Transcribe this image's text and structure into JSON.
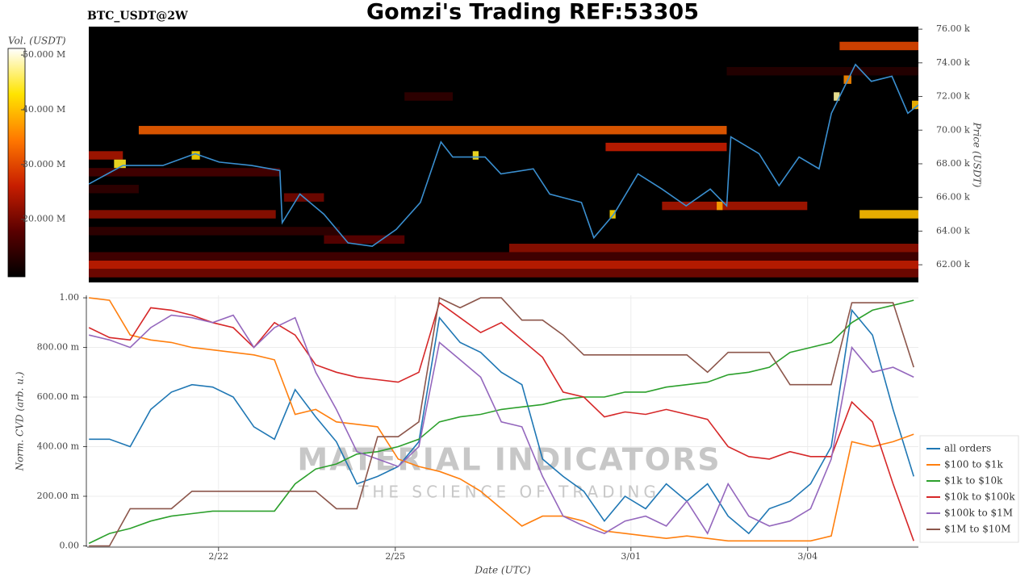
{
  "chart_data": [
    {
      "type": "heatmap",
      "title": "Gomzi's Trading REF:53305",
      "subtitle": "BTC_USDT@2W",
      "y_label": "Price (USDT)",
      "xlim": [
        19.77,
        33.88
      ],
      "ylim": [
        60950,
        76150
      ],
      "yticks": [
        {
          "value": 62000,
          "label": "62.00 k"
        },
        {
          "value": 64000,
          "label": "64.00 k"
        },
        {
          "value": 66000,
          "label": "66.00 k"
        },
        {
          "value": 68000,
          "label": "68.00 k"
        },
        {
          "value": 70000,
          "label": "70.00 k"
        },
        {
          "value": 72000,
          "label": "72.00 k"
        },
        {
          "value": 74000,
          "label": "74.00 k"
        },
        {
          "value": 76000,
          "label": "76.00 k"
        }
      ],
      "bin_size": 500,
      "colorbar": {
        "label": "Vol. (USDT)",
        "lim": [
          9500000,
          51200000
        ],
        "ticks": [
          {
            "value": 20000000,
            "label": "20.000 M"
          },
          {
            "value": 30000000,
            "label": "30.000 M"
          },
          {
            "value": 40000000,
            "label": "40.000 M"
          },
          {
            "value": 50000000,
            "label": "50.000 M"
          }
        ],
        "colormap": [
          "#000000",
          "#5a0000",
          "#c81e00",
          "#ff7800",
          "#ffe400",
          "#ffffff"
        ]
      },
      "cells": [
        {
          "price": 70000,
          "x0": 20.62,
          "x1": 30.62,
          "volume": 32000000
        },
        {
          "price": 75000,
          "x0": 32.54,
          "x1": 33.88,
          "volume": 30000000
        },
        {
          "price": 65000,
          "x0": 32.88,
          "x1": 33.88,
          "volume": 40000000
        },
        {
          "price": 65000,
          "x0": 19.77,
          "x1": 22.95,
          "volume": 22000000
        },
        {
          "price": 65500,
          "x0": 29.52,
          "x1": 31.99,
          "volume": 24000000
        },
        {
          "price": 62000,
          "x0": 19.77,
          "x1": 33.88,
          "volume": 26000000
        },
        {
          "price": 61500,
          "x0": 19.77,
          "x1": 33.88,
          "volume": 20000000
        },
        {
          "price": 62500,
          "x0": 19.77,
          "x1": 33.88,
          "volume": 16000000
        },
        {
          "price": 63000,
          "x0": 26.92,
          "x1": 33.88,
          "volume": 22000000
        },
        {
          "price": 64000,
          "x0": 19.77,
          "x1": 24.04,
          "volume": 14000000
        },
        {
          "price": 69000,
          "x0": 28.56,
          "x1": 30.62,
          "volume": 26000000
        },
        {
          "price": 68500,
          "x0": 19.77,
          "x1": 20.35,
          "volume": 24000000
        },
        {
          "price": 72000,
          "x0": 25.14,
          "x1": 25.96,
          "volume": 14000000
        },
        {
          "price": 73500,
          "x0": 30.62,
          "x1": 33.88,
          "volume": 13000000
        },
        {
          "price": 66500,
          "x0": 19.77,
          "x1": 20.62,
          "volume": 14000000
        },
        {
          "price": 67500,
          "x0": 19.77,
          "x1": 23.02,
          "volume": 16000000
        },
        {
          "price": 63500,
          "x0": 23.77,
          "x1": 25.14,
          "volume": 18000000
        },
        {
          "price": 66000,
          "x0": 23.09,
          "x1": 23.77,
          "volume": 20000000
        },
        {
          "price": 68000,
          "x0": 20.2,
          "x1": 20.4,
          "volume": 44000000
        },
        {
          "price": 68500,
          "x0": 21.52,
          "x1": 21.66,
          "volume": 42000000
        },
        {
          "price": 68500,
          "x0": 26.3,
          "x1": 26.4,
          "volume": 44000000
        },
        {
          "price": 72000,
          "x0": 32.44,
          "x1": 32.54,
          "volume": 48000000
        },
        {
          "price": 71500,
          "x0": 33.77,
          "x1": 33.88,
          "volume": 40000000
        },
        {
          "price": 65000,
          "x0": 28.63,
          "x1": 28.73,
          "volume": 42000000
        },
        {
          "price": 65500,
          "x0": 30.45,
          "x1": 30.55,
          "volume": 38000000
        },
        {
          "price": 73000,
          "x0": 32.61,
          "x1": 32.74,
          "volume": 36000000
        }
      ],
      "line": {
        "color": "#3a8fd0",
        "x": [
          19.77,
          20.35,
          21.03,
          21.58,
          21.99,
          22.54,
          23.02,
          23.06,
          23.36,
          23.77,
          24.18,
          24.59,
          25.0,
          25.41,
          25.76,
          25.96,
          26.51,
          26.78,
          27.33,
          27.61,
          28.15,
          28.36,
          28.7,
          29.11,
          29.52,
          29.93,
          30.34,
          30.62,
          30.69,
          31.17,
          31.51,
          31.85,
          32.19,
          32.4,
          32.81,
          33.08,
          33.43,
          33.7,
          33.88
        ],
        "values": [
          66800,
          67900,
          67900,
          68600,
          68100,
          67900,
          67600,
          64500,
          66200,
          65000,
          63300,
          63100,
          64100,
          65700,
          69300,
          68400,
          68400,
          67400,
          67700,
          66200,
          65700,
          63600,
          65000,
          67400,
          66500,
          65500,
          66500,
          65500,
          69600,
          68600,
          66700,
          68400,
          67700,
          71000,
          73900,
          72900,
          73200,
          71000,
          71500
        ]
      }
    },
    {
      "type": "line",
      "x_label": "Date (UTC)",
      "y_label": "Norm. CVD (arb. u.)",
      "xlim": [
        19.77,
        33.88
      ],
      "ylim": [
        -0.005,
        1.01
      ],
      "xticks": [
        {
          "value": 22,
          "label": "2/22"
        },
        {
          "value": 25,
          "label": "2/25"
        },
        {
          "value": 29,
          "label": "3/01"
        },
        {
          "value": 32,
          "label": "3/04"
        }
      ],
      "yticks": [
        {
          "value": 0,
          "label": "0.00"
        },
        {
          "value": 0.2,
          "label": "200.00 m"
        },
        {
          "value": 0.4,
          "label": "400.00 m"
        },
        {
          "value": 0.6,
          "label": "600.00 m"
        },
        {
          "value": 0.8,
          "label": "800.00 m"
        },
        {
          "value": 1,
          "label": "1.00"
        }
      ],
      "grid": true,
      "legend": "lower right",
      "watermark": {
        "title": "MATERIAL INDICATORS",
        "subtitle": "THE SCIENCE OF TRADING"
      },
      "x": [
        19.8,
        20.15,
        20.5,
        20.85,
        21.2,
        21.55,
        21.9,
        22.25,
        22.6,
        22.95,
        23.3,
        23.65,
        24.0,
        24.35,
        24.7,
        25.05,
        25.4,
        25.75,
        26.1,
        26.45,
        26.8,
        27.15,
        27.5,
        27.85,
        28.2,
        28.55,
        28.9,
        29.25,
        29.6,
        29.95,
        30.3,
        30.65,
        31.0,
        31.35,
        31.7,
        32.05,
        32.4,
        32.75,
        33.1,
        33.45,
        33.8
      ],
      "series": [
        {
          "name": "all orders",
          "color": "#1f77b4",
          "values": [
            0.43,
            0.43,
            0.4,
            0.55,
            0.62,
            0.65,
            0.64,
            0.6,
            0.48,
            0.43,
            0.63,
            0.52,
            0.42,
            0.25,
            0.28,
            0.32,
            0.42,
            0.92,
            0.82,
            0.78,
            0.7,
            0.65,
            0.35,
            0.28,
            0.22,
            0.1,
            0.2,
            0.15,
            0.25,
            0.18,
            0.25,
            0.12,
            0.05,
            0.15,
            0.18,
            0.25,
            0.4,
            0.95,
            0.85,
            0.55,
            0.28
          ]
        },
        {
          "name": "$100 to $1k",
          "color": "#ff7f0e",
          "values": [
            1.0,
            0.99,
            0.85,
            0.83,
            0.82,
            0.8,
            0.79,
            0.78,
            0.77,
            0.75,
            0.53,
            0.55,
            0.5,
            0.49,
            0.48,
            0.35,
            0.32,
            0.3,
            0.27,
            0.22,
            0.15,
            0.08,
            0.12,
            0.12,
            0.1,
            0.06,
            0.05,
            0.04,
            0.03,
            0.04,
            0.03,
            0.02,
            0.02,
            0.02,
            0.02,
            0.02,
            0.04,
            0.42,
            0.4,
            0.42,
            0.45
          ]
        },
        {
          "name": "$1k to $10k",
          "color": "#2ca02c",
          "values": [
            0.01,
            0.05,
            0.07,
            0.1,
            0.12,
            0.13,
            0.14,
            0.14,
            0.14,
            0.14,
            0.25,
            0.31,
            0.33,
            0.37,
            0.38,
            0.4,
            0.43,
            0.5,
            0.52,
            0.53,
            0.55,
            0.56,
            0.57,
            0.59,
            0.6,
            0.6,
            0.62,
            0.62,
            0.64,
            0.65,
            0.66,
            0.69,
            0.7,
            0.72,
            0.78,
            0.8,
            0.82,
            0.9,
            0.95,
            0.97,
            0.99
          ]
        },
        {
          "name": "$10k to $100k",
          "color": "#d62728",
          "values": [
            0.88,
            0.84,
            0.83,
            0.96,
            0.95,
            0.93,
            0.9,
            0.88,
            0.8,
            0.9,
            0.85,
            0.73,
            0.7,
            0.68,
            0.67,
            0.66,
            0.7,
            0.98,
            0.92,
            0.86,
            0.9,
            0.83,
            0.76,
            0.62,
            0.6,
            0.52,
            0.54,
            0.53,
            0.55,
            0.53,
            0.51,
            0.4,
            0.36,
            0.35,
            0.38,
            0.36,
            0.36,
            0.58,
            0.5,
            0.25,
            0.02
          ]
        },
        {
          "name": "$100k to $1M",
          "color": "#9467bd",
          "values": [
            0.85,
            0.83,
            0.8,
            0.88,
            0.93,
            0.92,
            0.9,
            0.93,
            0.8,
            0.88,
            0.92,
            0.7,
            0.55,
            0.38,
            0.35,
            0.32,
            0.4,
            0.82,
            0.75,
            0.68,
            0.5,
            0.48,
            0.28,
            0.12,
            0.08,
            0.05,
            0.1,
            0.12,
            0.08,
            0.18,
            0.05,
            0.25,
            0.12,
            0.08,
            0.1,
            0.15,
            0.35,
            0.8,
            0.7,
            0.72,
            0.68
          ]
        },
        {
          "name": "$1M to $10M",
          "color": "#8c564b",
          "values": [
            0.0,
            0.0,
            0.15,
            0.15,
            0.15,
            0.22,
            0.22,
            0.22,
            0.22,
            0.22,
            0.22,
            0.22,
            0.15,
            0.15,
            0.44,
            0.44,
            0.5,
            1.0,
            0.96,
            1.0,
            1.0,
            0.91,
            0.91,
            0.85,
            0.77,
            0.77,
            0.77,
            0.77,
            0.77,
            0.77,
            0.7,
            0.78,
            0.78,
            0.78,
            0.65,
            0.65,
            0.65,
            0.98,
            0.98,
            0.98,
            0.72
          ]
        }
      ]
    }
  ]
}
